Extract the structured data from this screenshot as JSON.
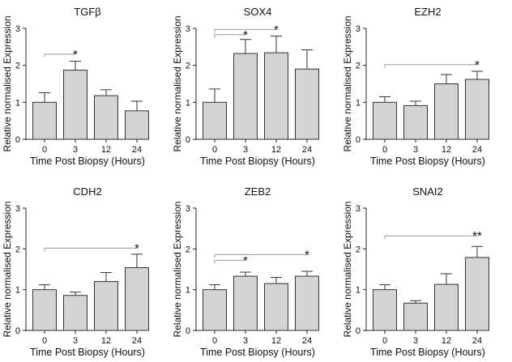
{
  "chart_data": [
    {
      "type": "bar",
      "title": "TGFβ",
      "categories": [
        "0",
        "3",
        "12",
        "24"
      ],
      "values": [
        1.0,
        1.87,
        1.18,
        0.77
      ],
      "errors": [
        0.26,
        0.24,
        0.16,
        0.26
      ],
      "xlabel": "Time Post Biopsy (Hours)",
      "ylabel": "Relative normalised Expression",
      "ylim": [
        0,
        3
      ],
      "yticks": [
        "0",
        "1",
        "2",
        "3"
      ],
      "significance": [
        {
          "from": "0",
          "to": "3",
          "label": "*",
          "level": 2.3
        }
      ]
    },
    {
      "type": "bar",
      "title": "SOX4",
      "categories": [
        "0",
        "3",
        "12",
        "24"
      ],
      "values": [
        1.0,
        2.32,
        2.34,
        1.9
      ],
      "errors": [
        0.36,
        0.38,
        0.45,
        0.52
      ],
      "xlabel": "Time Post Biopsy (Hours)",
      "ylabel": "Relative normalised Expression",
      "ylim": [
        0,
        3
      ],
      "yticks": [
        "0",
        "1",
        "2",
        "3"
      ],
      "significance": [
        {
          "from": "0",
          "to": "3",
          "label": "*",
          "level": 2.83
        },
        {
          "from": "0",
          "to": "12",
          "label": "*",
          "level": 2.97
        }
      ]
    },
    {
      "type": "bar",
      "title": "EZH2",
      "categories": [
        "0",
        "3",
        "12",
        "24"
      ],
      "values": [
        1.0,
        0.91,
        1.5,
        1.62
      ],
      "errors": [
        0.15,
        0.12,
        0.25,
        0.22
      ],
      "xlabel": "Time Post Biopsy (Hours)",
      "ylabel": "Relative normalised Expression",
      "ylim": [
        0,
        3
      ],
      "yticks": [
        "0",
        "1",
        "2",
        "3"
      ],
      "significance": [
        {
          "from": "0",
          "to": "24",
          "label": "*",
          "level": 2.02
        }
      ]
    },
    {
      "type": "bar",
      "title": "CDH2",
      "categories": [
        "0",
        "3",
        "12",
        "24"
      ],
      "values": [
        1.0,
        0.86,
        1.2,
        1.54
      ],
      "errors": [
        0.12,
        0.08,
        0.22,
        0.33
      ],
      "xlabel": "Time Post Biopsy (Hours)",
      "ylabel": "Relative normalised Expression",
      "ylim": [
        0,
        3
      ],
      "yticks": [
        "0",
        "1",
        "2",
        "3"
      ],
      "significance": [
        {
          "from": "0",
          "to": "24",
          "label": "*",
          "level": 2.02
        }
      ]
    },
    {
      "type": "bar",
      "title": "ZEB2",
      "categories": [
        "0",
        "3",
        "12",
        "24"
      ],
      "values": [
        1.0,
        1.33,
        1.15,
        1.33
      ],
      "errors": [
        0.12,
        0.1,
        0.15,
        0.12
      ],
      "xlabel": "Time Post Biopsy (Hours)",
      "ylabel": "Relative normalised Expression",
      "ylim": [
        0,
        3
      ],
      "yticks": [
        "0",
        "1",
        "2",
        "3"
      ],
      "significance": [
        {
          "from": "0",
          "to": "3",
          "label": "*",
          "level": 1.72
        },
        {
          "from": "0",
          "to": "24",
          "label": "*",
          "level": 1.86
        }
      ]
    },
    {
      "type": "bar",
      "title": "SNAI2",
      "categories": [
        "0",
        "3",
        "12",
        "24"
      ],
      "values": [
        1.0,
        0.67,
        1.13,
        1.79
      ],
      "errors": [
        0.12,
        0.06,
        0.26,
        0.27
      ],
      "xlabel": "Time Post Biopsy (Hours)",
      "ylabel": "Relative normalised Expression",
      "ylim": [
        0,
        3
      ],
      "yticks": [
        "0",
        "1",
        "2",
        "3"
      ],
      "significance": [
        {
          "from": "0",
          "to": "24",
          "label": "**",
          "level": 2.32
        }
      ]
    }
  ]
}
